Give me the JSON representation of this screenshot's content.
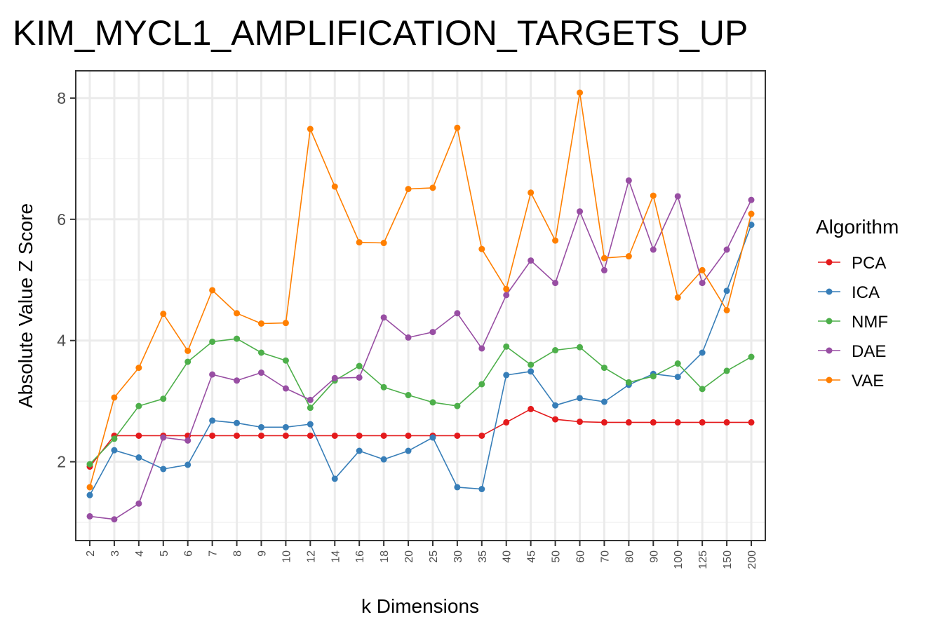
{
  "chart_data": {
    "type": "line",
    "title": "KIM_MYCL1_AMPLIFICATION_TARGETS_UP",
    "xlabel": "k Dimensions",
    "ylabel": "Absolute Value Z Score",
    "categories": [
      "2",
      "3",
      "4",
      "5",
      "6",
      "7",
      "8",
      "9",
      "10",
      "12",
      "14",
      "16",
      "18",
      "20",
      "25",
      "30",
      "35",
      "40",
      "45",
      "50",
      "60",
      "70",
      "80",
      "90",
      "100",
      "125",
      "150",
      "200"
    ],
    "ylim": [
      0.7,
      8.45
    ],
    "yticks": [
      2,
      4,
      6,
      8
    ],
    "grid": true,
    "legend": {
      "title": "Algorithm",
      "position": "right"
    },
    "series": [
      {
        "name": "PCA",
        "color": "#e41a1c",
        "values": [
          1.92,
          2.43,
          2.43,
          2.43,
          2.43,
          2.43,
          2.43,
          2.43,
          2.43,
          2.43,
          2.43,
          2.43,
          2.43,
          2.43,
          2.43,
          2.43,
          2.43,
          2.65,
          2.87,
          2.7,
          2.66,
          2.65,
          2.65,
          2.65,
          2.65,
          2.65,
          2.65,
          2.65
        ]
      },
      {
        "name": "ICA",
        "color": "#377eb8",
        "values": [
          1.45,
          2.19,
          2.07,
          1.88,
          1.95,
          2.68,
          2.64,
          2.57,
          2.57,
          2.62,
          1.72,
          2.18,
          2.04,
          2.18,
          2.4,
          1.58,
          1.55,
          3.43,
          3.49,
          2.93,
          3.05,
          2.99,
          3.27,
          3.45,
          3.4,
          3.8,
          4.82,
          5.91
        ]
      },
      {
        "name": "NMF",
        "color": "#4daf4a",
        "values": [
          1.96,
          2.38,
          2.92,
          3.04,
          3.65,
          3.98,
          4.03,
          3.8,
          3.67,
          2.89,
          3.34,
          3.58,
          3.23,
          3.1,
          2.98,
          2.92,
          3.28,
          3.9,
          3.6,
          3.84,
          3.89,
          3.55,
          3.31,
          3.41,
          3.62,
          3.2,
          3.5,
          3.73
        ]
      },
      {
        "name": "DAE",
        "color": "#984ea3",
        "values": [
          1.1,
          1.05,
          1.31,
          2.4,
          2.35,
          3.44,
          3.34,
          3.47,
          3.21,
          3.02,
          3.38,
          3.39,
          4.38,
          4.05,
          4.14,
          4.45,
          3.87,
          4.75,
          5.32,
          4.95,
          6.13,
          5.16,
          6.64,
          5.5,
          6.38,
          4.95,
          5.5,
          6.32
        ]
      },
      {
        "name": "VAE",
        "color": "#ff7f00",
        "values": [
          1.58,
          3.06,
          3.55,
          4.44,
          3.83,
          4.83,
          4.45,
          4.28,
          4.29,
          7.49,
          6.54,
          5.62,
          5.61,
          6.5,
          6.52,
          7.51,
          5.51,
          4.85,
          6.44,
          5.65,
          8.09,
          5.36,
          5.39,
          6.39,
          4.71,
          5.16,
          4.5,
          6.09
        ]
      }
    ]
  }
}
